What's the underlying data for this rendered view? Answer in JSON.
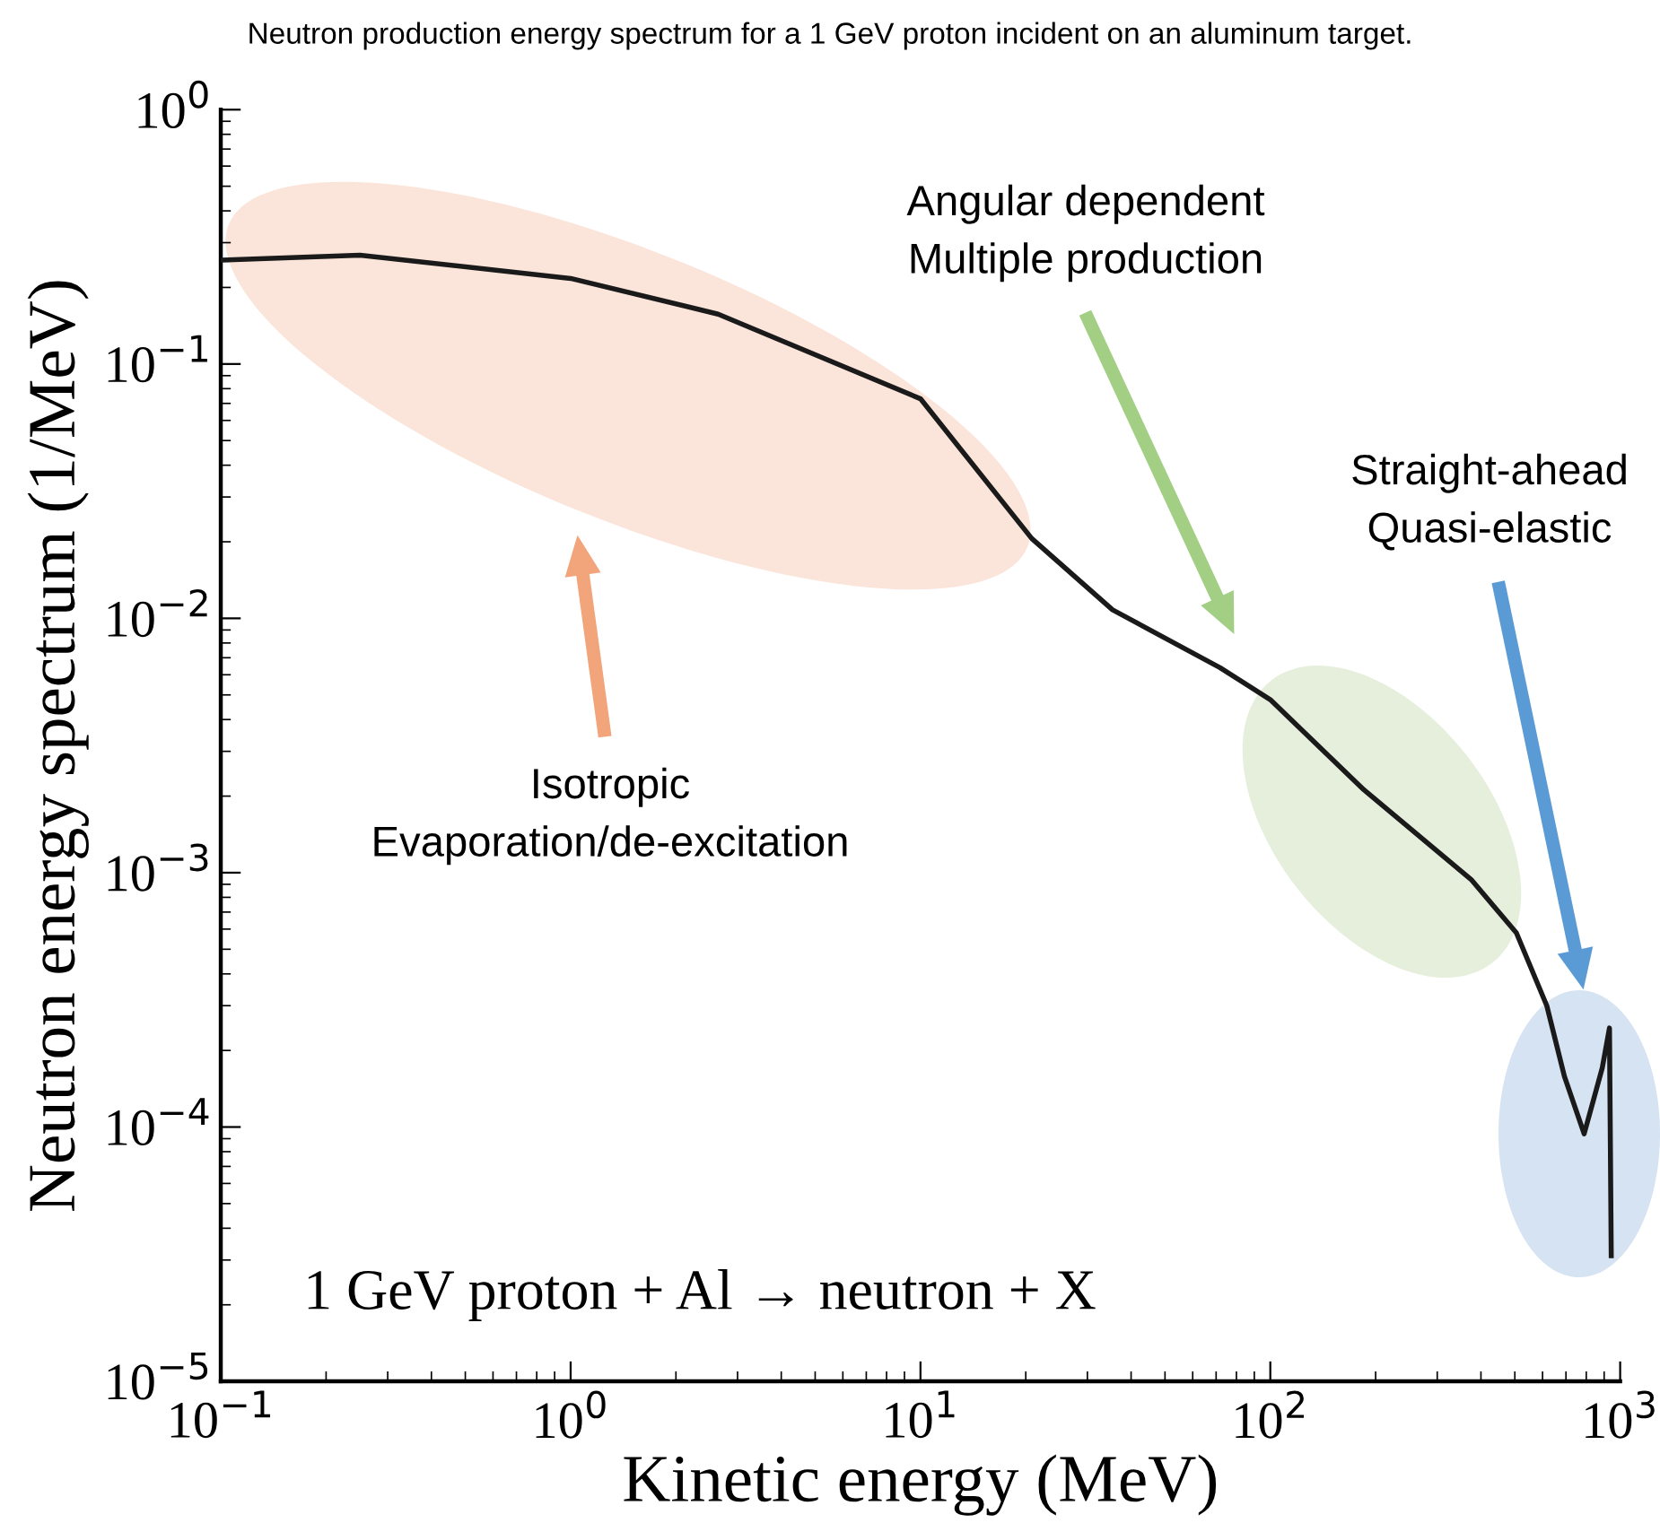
{
  "chart_data": {
    "type": "line",
    "title": "Neutron production energy spectrum for a 1 GeV proton incident on an aluminum target.",
    "xlabel": "Kinetic energy (MeV)",
    "ylabel": "Neutron energy spectrum (1/MeV)",
    "log": "xy",
    "xlim": [
      0.1,
      1000
    ],
    "ylim": [
      1e-05,
      1
    ],
    "xticks": [
      {
        "value": 0.1,
        "label": "10$^{−1}$"
      },
      {
        "value": 1,
        "label": "10$^{0}$"
      },
      {
        "value": 10,
        "label": "10$^{1}$"
      },
      {
        "value": 100,
        "label": "10$^{2}$"
      },
      {
        "value": 1000,
        "label": "10$^{3}$"
      }
    ],
    "yticks": [
      {
        "value": 1e-05,
        "label": "10$^{−5}$"
      },
      {
        "value": 0.0001,
        "label": "10$^{−4}$"
      },
      {
        "value": 0.001,
        "label": "10$^{−3}$"
      },
      {
        "value": 0.01,
        "label": "10$^{−2}$"
      },
      {
        "value": 0.1,
        "label": "10$^{−1}$"
      },
      {
        "value": 1,
        "label": "10$^{0}$"
      }
    ],
    "grid": false,
    "marker": "none",
    "line_style": "solid",
    "series": [
      {
        "color": "#1a1a1a",
        "x": [
          0.1,
          0.25,
          1,
          2.64,
          10,
          20.8,
          35.4,
          71.8,
          100,
          185,
          375,
          505,
          617,
          693,
          789,
          889,
          932,
          943
        ],
        "values": [
          0.256,
          0.268,
          0.217,
          0.157,
          0.073,
          0.0206,
          0.0108,
          0.0064,
          0.00479,
          0.00212,
          0.00094,
          0.00058,
          0.0003,
          0.000158,
          9.4e-05,
          0.000171,
          0.000245,
          3.12e-05
        ]
      }
    ],
    "annotations": [
      "Isotropic\nEvaporation/de-excitation",
      "Angular dependent\nMultiple production",
      "Straight-ahead\nQuasi-elastic",
      "1 GeV proton + Al → neutron + X"
    ]
  }
}
